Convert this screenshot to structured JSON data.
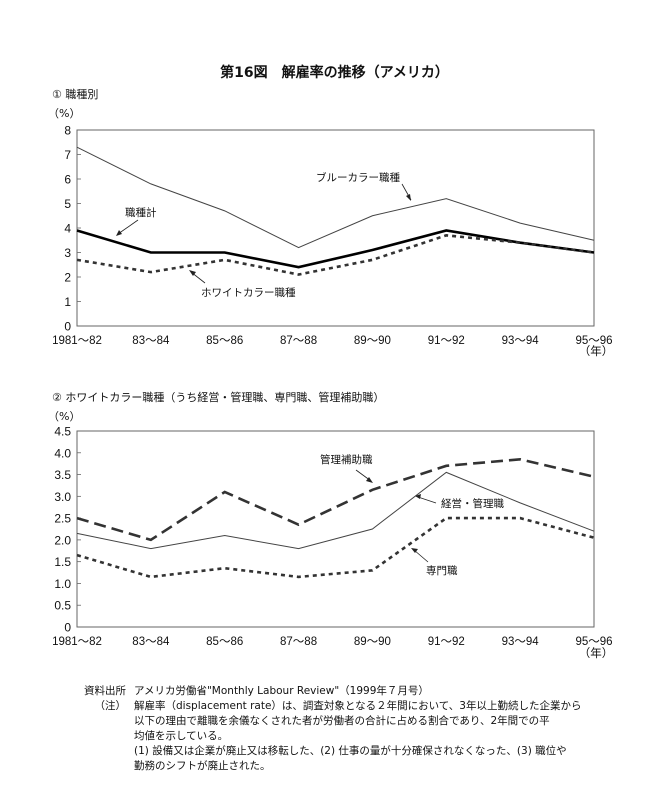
{
  "title": "第16図　解雇率の推移（アメリカ）",
  "panel1": {
    "heading": "① 職種別",
    "unit": "（%）"
  },
  "panel2": {
    "heading": "② ホワイトカラー職種（うち経営・管理職、専門職、管理補助職）",
    "unit": "（%）"
  },
  "year_unit": "（年）",
  "notes": {
    "source_key": "資料出所",
    "source": "アメリカ労働省\"Monthly Labour Review\"（1999年７月号）",
    "note_key": "（注）",
    "note_lines": [
      "解雇率（displacement rate）は、調査対象となる２年間において、3年以上勤続した企業から",
      "以下の理由で離職を余儀なくされた者が労働者の合計に占める割合であり、2年間での平",
      "均値を示している。",
      "(1) 設備又は企業が廃止又は移転した、(2) 仕事の量が十分確保されなくなった、(3) 職位や",
      "勤務のシフトが廃止された。"
    ]
  },
  "chart_data": [
    {
      "type": "line",
      "title": "① 職種別",
      "ylabel": "（%）",
      "xlabel": "（年）",
      "categories": [
        "1981～82",
        "83～84",
        "85～86",
        "87～88",
        "89～90",
        "91～92",
        "93～94",
        "95～96"
      ],
      "ylim": [
        0,
        8
      ],
      "yticks": [
        "0",
        "1",
        "2",
        "3",
        "4",
        "5",
        "6",
        "7",
        "8"
      ],
      "grid": false,
      "series": [
        {
          "name": "ブルーカラー職種",
          "style": "thin-solid",
          "values": [
            7.3,
            5.8,
            4.7,
            3.2,
            4.5,
            5.2,
            4.2,
            3.5
          ]
        },
        {
          "name": "職種計",
          "style": "thick-solid",
          "values": [
            3.9,
            3.0,
            3.0,
            2.4,
            3.1,
            3.9,
            3.4,
            3.0
          ]
        },
        {
          "name": "ホワイトカラー職種",
          "style": "dotted",
          "values": [
            2.7,
            2.2,
            2.7,
            2.1,
            2.7,
            3.7,
            3.4,
            3.0
          ]
        }
      ]
    },
    {
      "type": "line",
      "title": "② ホワイトカラー職種（うち経営・管理職、専門職、管理補助職）",
      "ylabel": "（%）",
      "xlabel": "（年）",
      "categories": [
        "1981～82",
        "83～84",
        "85～86",
        "87～88",
        "89～90",
        "91～92",
        "93～94",
        "95～96"
      ],
      "ylim": [
        0,
        4.5
      ],
      "yticks": [
        "0",
        "0.5",
        "1.0",
        "1.5",
        "2.0",
        "2.5",
        "3.0",
        "3.5",
        "4.0",
        "4.5"
      ],
      "grid": false,
      "series": [
        {
          "name": "管理補助職",
          "style": "long-dash",
          "values": [
            2.5,
            2.0,
            3.1,
            2.35,
            3.15,
            3.7,
            3.85,
            3.45
          ]
        },
        {
          "name": "経営・管理職",
          "style": "thin-solid",
          "values": [
            2.15,
            1.8,
            2.1,
            1.8,
            2.25,
            3.55,
            2.85,
            2.2
          ]
        },
        {
          "name": "専門職",
          "style": "dotted",
          "values": [
            1.65,
            1.15,
            1.35,
            1.15,
            1.3,
            2.5,
            2.5,
            2.05
          ]
        }
      ]
    }
  ]
}
